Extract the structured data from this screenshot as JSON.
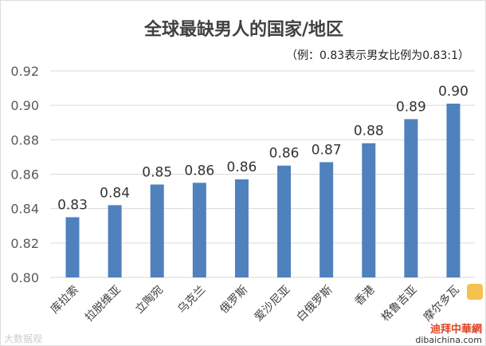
{
  "chart_data": {
    "type": "bar",
    "title": "全球最缺男人的国家/地区",
    "subtitle": "（例：0.83表示男女比例为0.83:1）",
    "categories": [
      "库拉索",
      "拉脱维亚",
      "立陶宛",
      "乌克兰",
      "俄罗斯",
      "爱沙尼亚",
      "白俄罗斯",
      "香港",
      "格鲁吉亚",
      "摩尔多瓦"
    ],
    "values": [
      0.835,
      0.842,
      0.854,
      0.855,
      0.857,
      0.865,
      0.867,
      0.878,
      0.892,
      0.901
    ],
    "data_labels": [
      "0.83",
      "0.84",
      "0.85",
      "0.86",
      "0.86",
      "0.86",
      "0.87",
      "0.88",
      "0.89",
      "0.90"
    ],
    "ylim": [
      0.8,
      0.92
    ],
    "yticks": [
      "0.80",
      "0.82",
      "0.84",
      "0.86",
      "0.88",
      "0.90",
      "0.92"
    ],
    "grid": true,
    "bar_color": "#4f81bd"
  },
  "watermarks": {
    "left": "大数据观",
    "right_cn": "迪拜中華網",
    "right_site": "dibaichina.com"
  }
}
